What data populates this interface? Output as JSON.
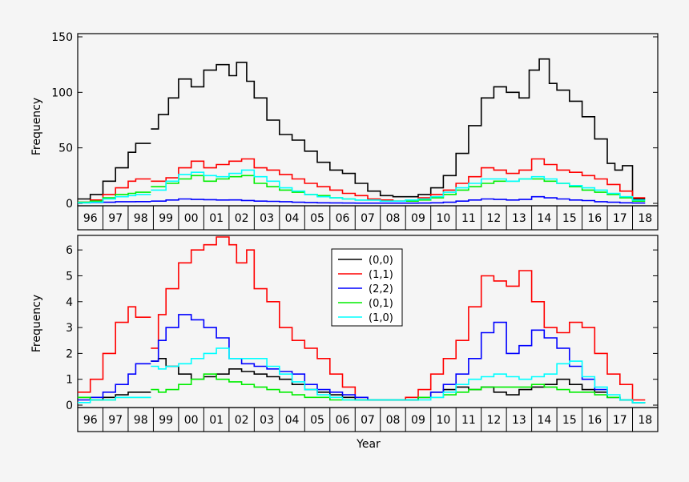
{
  "chart_data": [
    {
      "type": "line",
      "step": true,
      "panel": "top",
      "ylabel": "Frequency",
      "ylim": [
        0,
        150
      ],
      "yticks": [
        0,
        50,
        100,
        150
      ],
      "xlim": [
        1996,
        2019
      ],
      "year_labels": [
        "96",
        "97",
        "98",
        "99",
        "00",
        "01",
        "02",
        "03",
        "04",
        "05",
        "06",
        "07",
        "08",
        "09",
        "10",
        "11",
        "12",
        "13",
        "14",
        "15",
        "16",
        "17",
        "18"
      ],
      "gaps": [
        [
          1998.35,
          1998.85
        ]
      ],
      "series": [
        {
          "name": "(0,0)",
          "color": "#000000",
          "x": [
            1996.0,
            1996.5,
            1997.0,
            1997.5,
            1998.0,
            1998.3,
            1998.9,
            1999.2,
            1999.6,
            2000.0,
            2000.5,
            2001.0,
            2001.5,
            2002.0,
            2002.3,
            2002.7,
            2003.0,
            2003.5,
            2004.0,
            2004.5,
            2005.0,
            2005.5,
            2006.0,
            2006.5,
            2007.0,
            2007.5,
            2008.0,
            2008.5,
            2009.0,
            2009.5,
            2010.0,
            2010.5,
            2011.0,
            2011.5,
            2012.0,
            2012.5,
            2013.0,
            2013.5,
            2013.9,
            2014.3,
            2014.7,
            2015.0,
            2015.5,
            2016.0,
            2016.5,
            2017.0,
            2017.3,
            2017.6,
            2018.0
          ],
          "values": [
            4,
            8,
            20,
            32,
            46,
            54,
            67,
            80,
            95,
            112,
            105,
            120,
            125,
            115,
            127,
            110,
            95,
            75,
            62,
            57,
            47,
            37,
            30,
            27,
            18,
            11,
            7,
            6,
            6,
            8,
            14,
            25,
            45,
            70,
            95,
            105,
            100,
            95,
            120,
            130,
            108,
            102,
            92,
            78,
            58,
            36,
            30,
            34,
            4
          ]
        },
        {
          "name": "(1,1)",
          "color": "#ff0000",
          "x": [
            1996.0,
            1996.5,
            1997.0,
            1997.5,
            1998.0,
            1998.3,
            1998.9,
            1999.5,
            2000.0,
            2000.5,
            2001.0,
            2001.5,
            2002.0,
            2002.5,
            2003.0,
            2003.5,
            2004.0,
            2004.5,
            2005.0,
            2005.5,
            2006.0,
            2006.5,
            2007.0,
            2007.5,
            2008.0,
            2008.5,
            2009.0,
            2009.5,
            2010.0,
            2010.5,
            2011.0,
            2011.5,
            2012.0,
            2012.5,
            2013.0,
            2013.5,
            2014.0,
            2014.5,
            2015.0,
            2015.5,
            2016.0,
            2016.5,
            2017.0,
            2017.5,
            2018.0
          ],
          "values": [
            1,
            3,
            8,
            14,
            20,
            22,
            20,
            23,
            32,
            38,
            32,
            35,
            38,
            40,
            32,
            30,
            26,
            22,
            18,
            15,
            12,
            9,
            7,
            4,
            3,
            2,
            3,
            5,
            8,
            12,
            18,
            24,
            32,
            30,
            27,
            30,
            40,
            35,
            30,
            28,
            25,
            22,
            17,
            11,
            5
          ]
        },
        {
          "name": "(2,2)",
          "color": "#0000ff",
          "x": [
            1996.0,
            1996.5,
            1997.0,
            1997.5,
            1998.0,
            1998.3,
            1998.9,
            1999.5,
            2000.0,
            2000.5,
            2001.0,
            2001.5,
            2002.0,
            2002.5,
            2003.0,
            2003.5,
            2004.0,
            2004.5,
            2005.0,
            2005.5,
            2006.0,
            2006.5,
            2007.0,
            2007.5,
            2008.0,
            2008.5,
            2009.0,
            2009.5,
            2010.0,
            2010.5,
            2011.0,
            2011.5,
            2012.0,
            2012.5,
            2013.0,
            2013.5,
            2014.0,
            2014.5,
            2015.0,
            2015.5,
            2016.0,
            2016.5,
            2017.0,
            2017.5,
            2018.0
          ],
          "values": [
            0.5,
            0.8,
            1,
            1.5,
            1.5,
            1.6,
            2,
            3,
            4,
            3.5,
            3.3,
            3,
            3.1,
            2.6,
            2,
            1.8,
            1.5,
            1,
            0.8,
            0.5,
            0.4,
            0.3,
            0.2,
            0.2,
            0.2,
            0.2,
            0.2,
            0.3,
            0.5,
            1,
            2,
            3,
            4,
            3.5,
            3,
            3.5,
            6,
            5,
            4,
            3,
            2.5,
            1.5,
            1,
            0.5,
            0.3
          ]
        },
        {
          "name": "(0,1)",
          "color": "#00ee00",
          "x": [
            1996.0,
            1996.5,
            1997.0,
            1997.5,
            1998.0,
            1998.3,
            1998.9,
            1999.5,
            2000.0,
            2000.5,
            2001.0,
            2001.5,
            2002.0,
            2002.5,
            2003.0,
            2003.5,
            2004.0,
            2004.5,
            2005.0,
            2005.5,
            2006.0,
            2006.5,
            2007.0,
            2007.5,
            2008.0,
            2008.5,
            2009.0,
            2009.5,
            2010.0,
            2010.5,
            2011.0,
            2011.5,
            2012.0,
            2012.5,
            2013.0,
            2013.5,
            2014.0,
            2014.5,
            2015.0,
            2015.5,
            2016.0,
            2016.5,
            2017.0,
            2017.5,
            2018.0
          ],
          "values": [
            1,
            2,
            5,
            8,
            9,
            10,
            15,
            18,
            22,
            25,
            20,
            22,
            24,
            25,
            18,
            15,
            12,
            10,
            8,
            7,
            5,
            4,
            3,
            3,
            2,
            2,
            2,
            3,
            5,
            8,
            12,
            15,
            18,
            20,
            20,
            22,
            22,
            20,
            18,
            15,
            12,
            10,
            8,
            5,
            2
          ]
        },
        {
          "name": "(1,0)",
          "color": "#00ffff",
          "x": [
            1996.0,
            1996.5,
            1997.0,
            1997.5,
            1998.0,
            1998.3,
            1998.9,
            1999.5,
            2000.0,
            2000.5,
            2001.0,
            2001.5,
            2002.0,
            2002.5,
            2003.0,
            2003.5,
            2004.0,
            2004.5,
            2005.0,
            2005.5,
            2006.0,
            2006.5,
            2007.0,
            2007.5,
            2008.0,
            2008.5,
            2009.0,
            2009.5,
            2010.0,
            2010.5,
            2011.0,
            2011.5,
            2012.0,
            2012.5,
            2013.0,
            2013.5,
            2014.0,
            2014.5,
            2015.0,
            2015.5,
            2016.0,
            2016.5,
            2017.0,
            2017.5,
            2018.0
          ],
          "values": [
            0.5,
            1,
            4,
            6,
            7,
            8,
            12,
            20,
            26,
            28,
            25,
            24,
            27,
            30,
            24,
            20,
            14,
            11,
            8,
            6,
            5,
            4,
            3,
            3,
            2,
            2,
            3,
            4,
            6,
            10,
            14,
            18,
            22,
            22,
            20,
            22,
            24,
            22,
            18,
            16,
            14,
            12,
            9,
            6,
            3
          ]
        }
      ]
    },
    {
      "type": "line",
      "step": true,
      "panel": "bottom",
      "ylabel": "Frequency",
      "xlabel": "Year",
      "ylim": [
        0,
        6.5
      ],
      "yticks": [
        0,
        1,
        2,
        3,
        4,
        5,
        6
      ],
      "xlim": [
        1996,
        2019
      ],
      "year_labels": [
        "96",
        "97",
        "98",
        "99",
        "00",
        "01",
        "02",
        "03",
        "04",
        "05",
        "06",
        "07",
        "08",
        "09",
        "10",
        "11",
        "12",
        "13",
        "14",
        "15",
        "16",
        "17",
        "18"
      ],
      "gaps": [
        [
          1998.35,
          1998.85
        ]
      ],
      "legend": {
        "placement": "top-center",
        "entries": [
          "(0,0)",
          "(1,1)",
          "(2,2)",
          "(0,1)",
          "(1,0)"
        ]
      },
      "series": [
        {
          "name": "(0,0)",
          "color": "#000000",
          "x": [
            1996.0,
            1996.5,
            1997.0,
            1997.5,
            1998.0,
            1998.3,
            1998.9,
            1999.2,
            1999.5,
            2000.0,
            2000.5,
            2001.0,
            2001.5,
            2002.0,
            2002.5,
            2003.0,
            2003.5,
            2004.0,
            2004.5,
            2005.0,
            2005.5,
            2006.0,
            2006.5,
            2007.0,
            2007.5,
            2008.0,
            2008.5,
            2009.0,
            2009.5,
            2010.0,
            2010.5,
            2011.0,
            2011.5,
            2012.0,
            2012.5,
            2013.0,
            2013.5,
            2014.0,
            2014.5,
            2015.0,
            2015.5,
            2016.0,
            2016.5,
            2017.0,
            2017.5,
            2018.0
          ],
          "values": [
            0.3,
            0.2,
            0.3,
            0.4,
            0.5,
            0.5,
            1.7,
            1.8,
            1.5,
            1.2,
            1.0,
            1.1,
            1.2,
            1.4,
            1.3,
            1.2,
            1.1,
            1.0,
            0.8,
            0.6,
            0.5,
            0.4,
            0.3,
            0.2,
            0.2,
            0.2,
            0.2,
            0.2,
            0.3,
            0.5,
            0.6,
            0.7,
            0.6,
            0.7,
            0.5,
            0.4,
            0.6,
            0.7,
            0.8,
            1.0,
            0.8,
            0.6,
            0.5,
            0.3,
            0.2,
            0.1
          ]
        },
        {
          "name": "(1,1)",
          "color": "#ff0000",
          "x": [
            1996.0,
            1996.5,
            1997.0,
            1997.5,
            1998.0,
            1998.3,
            1998.9,
            1999.2,
            1999.5,
            2000.0,
            2000.5,
            2001.0,
            2001.5,
            2002.0,
            2002.3,
            2002.7,
            2003.0,
            2003.5,
            2004.0,
            2004.5,
            2005.0,
            2005.5,
            2006.0,
            2006.5,
            2007.0,
            2007.5,
            2008.0,
            2008.5,
            2009.0,
            2009.5,
            2010.0,
            2010.5,
            2011.0,
            2011.5,
            2012.0,
            2012.5,
            2013.0,
            2013.5,
            2014.0,
            2014.5,
            2015.0,
            2015.5,
            2016.0,
            2016.5,
            2017.0,
            2017.5,
            2018.0
          ],
          "values": [
            0.5,
            1.0,
            2.0,
            3.2,
            3.8,
            3.4,
            2.2,
            3.5,
            4.5,
            5.5,
            6.0,
            6.2,
            6.5,
            6.2,
            5.5,
            6.0,
            4.5,
            4.0,
            3.0,
            2.5,
            2.2,
            1.8,
            1.2,
            0.7,
            0.3,
            0.2,
            0.2,
            0.2,
            0.3,
            0.6,
            1.2,
            1.8,
            2.5,
            3.8,
            5.0,
            4.8,
            4.6,
            5.2,
            4.0,
            3.0,
            2.8,
            3.2,
            3.0,
            2.0,
            1.2,
            0.8,
            0.2
          ]
        },
        {
          "name": "(2,2)",
          "color": "#0000ff",
          "x": [
            1996.0,
            1996.5,
            1997.0,
            1997.5,
            1998.0,
            1998.3,
            1998.9,
            1999.2,
            1999.5,
            2000.0,
            2000.5,
            2001.0,
            2001.5,
            2002.0,
            2002.5,
            2003.0,
            2003.5,
            2004.0,
            2004.5,
            2005.0,
            2005.5,
            2006.0,
            2006.5,
            2007.0,
            2007.5,
            2008.0,
            2008.5,
            2009.0,
            2009.5,
            2010.0,
            2010.5,
            2011.0,
            2011.5,
            2012.0,
            2012.5,
            2013.0,
            2013.5,
            2014.0,
            2014.5,
            2015.0,
            2015.5,
            2016.0,
            2016.5,
            2017.0,
            2017.5,
            2018.0
          ],
          "values": [
            0.2,
            0.3,
            0.5,
            0.8,
            1.2,
            1.6,
            1.7,
            2.5,
            3.0,
            3.5,
            3.3,
            3.0,
            2.6,
            1.8,
            1.6,
            1.5,
            1.4,
            1.3,
            1.2,
            0.8,
            0.6,
            0.5,
            0.4,
            0.3,
            0.2,
            0.2,
            0.2,
            0.2,
            0.3,
            0.5,
            0.8,
            1.2,
            1.8,
            2.8,
            3.2,
            2.0,
            2.3,
            2.9,
            2.6,
            2.2,
            1.5,
            1.0,
            0.6,
            0.3,
            0.2,
            0.1
          ]
        },
        {
          "name": "(0,1)",
          "color": "#00ee00",
          "x": [
            1996.0,
            1996.5,
            1997.0,
            1997.5,
            1998.0,
            1998.3,
            1998.9,
            1999.2,
            1999.5,
            2000.0,
            2000.5,
            2001.0,
            2001.5,
            2002.0,
            2002.5,
            2003.0,
            2003.5,
            2004.0,
            2004.5,
            2005.0,
            2005.5,
            2006.0,
            2006.5,
            2007.0,
            2007.5,
            2008.0,
            2008.5,
            2009.0,
            2009.5,
            2010.0,
            2010.5,
            2011.0,
            2011.5,
            2012.0,
            2012.5,
            2013.0,
            2013.5,
            2014.0,
            2014.5,
            2015.0,
            2015.5,
            2016.0,
            2016.5,
            2017.0,
            2017.5,
            2018.0
          ],
          "values": [
            0.3,
            0.2,
            0.2,
            0.3,
            0.3,
            0.3,
            0.6,
            0.5,
            0.6,
            0.8,
            1.0,
            1.2,
            1.0,
            0.9,
            0.8,
            0.7,
            0.6,
            0.5,
            0.4,
            0.3,
            0.3,
            0.2,
            0.2,
            0.2,
            0.2,
            0.2,
            0.2,
            0.2,
            0.3,
            0.3,
            0.4,
            0.5,
            0.6,
            0.7,
            0.7,
            0.7,
            0.7,
            0.8,
            0.7,
            0.6,
            0.5,
            0.5,
            0.4,
            0.3,
            0.2,
            0.1
          ]
        },
        {
          "name": "(1,0)",
          "color": "#00ffff",
          "x": [
            1996.0,
            1996.5,
            1997.0,
            1997.5,
            1998.0,
            1998.3,
            1998.9,
            1999.2,
            1999.5,
            2000.0,
            2000.5,
            2001.0,
            2001.5,
            2002.0,
            2002.5,
            2003.0,
            2003.5,
            2004.0,
            2004.5,
            2005.0,
            2005.5,
            2006.0,
            2006.5,
            2007.0,
            2007.5,
            2008.0,
            2008.5,
            2009.0,
            2009.5,
            2010.0,
            2010.5,
            2011.0,
            2011.5,
            2012.0,
            2012.5,
            2013.0,
            2013.5,
            2014.0,
            2014.5,
            2015.0,
            2015.5,
            2016.0,
            2016.5,
            2017.0,
            2017.5,
            2018.0
          ],
          "values": [
            0.1,
            0.2,
            0.2,
            0.3,
            0.3,
            0.3,
            1.5,
            1.4,
            1.5,
            1.6,
            1.8,
            2.0,
            2.2,
            1.8,
            1.8,
            1.8,
            1.5,
            1.2,
            0.9,
            0.6,
            0.4,
            0.3,
            0.2,
            0.2,
            0.2,
            0.2,
            0.2,
            0.2,
            0.2,
            0.3,
            0.5,
            0.8,
            1.0,
            1.1,
            1.2,
            1.1,
            1.0,
            1.1,
            1.2,
            1.6,
            1.7,
            1.1,
            0.7,
            0.4,
            0.2,
            0.1
          ]
        }
      ]
    }
  ]
}
